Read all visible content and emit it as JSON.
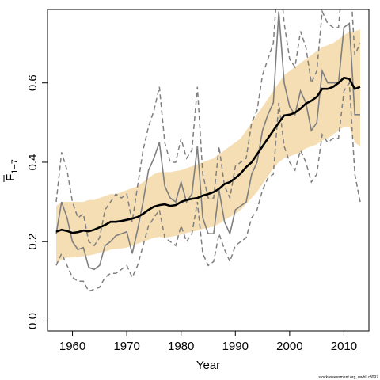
{
  "chart_data": {
    "type": "line",
    "title": "",
    "xlabel": "Year",
    "ylabel_main": "F",
    "ylabel_sub": "1−7",
    "xlim": [
      1955.4,
      2014.6
    ],
    "ylim": [
      -0.025,
      0.785
    ],
    "xticks": [
      1960,
      1970,
      1980,
      1990,
      2000,
      2010
    ],
    "xtick_labels": [
      "1960",
      "1970",
      "1980",
      "1990",
      "2000",
      "2010"
    ],
    "yticks": [
      0.0,
      0.2,
      0.4,
      0.6
    ],
    "ytick_labels": [
      "0.0",
      "0.2",
      "0.4",
      "0.6"
    ],
    "grid": false,
    "legend": "none",
    "colors": {
      "band": "#f5deb3",
      "median": "#000000",
      "estimate": "#7f7f7f",
      "estimate_ci": "#7f7f7f"
    },
    "x": [
      1957,
      1958,
      1959,
      1960,
      1961,
      1962,
      1963,
      1964,
      1965,
      1966,
      1967,
      1968,
      1969,
      1970,
      1971,
      1972,
      1973,
      1974,
      1975,
      1976,
      1977,
      1978,
      1979,
      1980,
      1981,
      1982,
      1983,
      1984,
      1985,
      1986,
      1987,
      1988,
      1989,
      1990,
      1991,
      1992,
      1993,
      1994,
      1995,
      1996,
      1997,
      1998,
      1999,
      2000,
      2001,
      2002,
      2003,
      2004,
      2005,
      2006,
      2007,
      2008,
      2009,
      2010,
      2011,
      2012,
      2013
    ],
    "series": [
      {
        "role": "band_lower",
        "values": [
          0.145,
          0.155,
          0.16,
          0.16,
          0.162,
          0.163,
          0.165,
          0.168,
          0.172,
          0.175,
          0.18,
          0.182,
          0.183,
          0.185,
          0.19,
          0.195,
          0.2,
          0.205,
          0.21,
          0.212,
          0.21,
          0.212,
          0.215,
          0.218,
          0.222,
          0.225,
          0.228,
          0.232,
          0.235,
          0.238,
          0.245,
          0.255,
          0.262,
          0.27,
          0.28,
          0.295,
          0.31,
          0.325,
          0.345,
          0.365,
          0.385,
          0.4,
          0.41,
          0.415,
          0.42,
          0.425,
          0.435,
          0.44,
          0.445,
          0.455,
          0.46,
          0.47,
          0.48,
          0.49,
          0.49,
          0.45,
          0.44
        ]
      },
      {
        "role": "band_upper",
        "values": [
          0.29,
          0.3,
          0.3,
          0.3,
          0.3,
          0.3,
          0.305,
          0.305,
          0.31,
          0.315,
          0.32,
          0.32,
          0.325,
          0.33,
          0.335,
          0.34,
          0.35,
          0.36,
          0.37,
          0.375,
          0.375,
          0.375,
          0.378,
          0.38,
          0.385,
          0.39,
          0.395,
          0.4,
          0.405,
          0.41,
          0.42,
          0.43,
          0.44,
          0.45,
          0.46,
          0.48,
          0.5,
          0.52,
          0.54,
          0.56,
          0.58,
          0.6,
          0.62,
          0.63,
          0.64,
          0.65,
          0.66,
          0.67,
          0.68,
          0.69,
          0.695,
          0.7,
          0.71,
          0.72,
          0.73,
          0.73,
          0.735
        ]
      },
      {
        "role": "median",
        "values": [
          0.225,
          0.23,
          0.227,
          0.222,
          0.224,
          0.228,
          0.226,
          0.23,
          0.236,
          0.242,
          0.25,
          0.25,
          0.252,
          0.255,
          0.258,
          0.262,
          0.27,
          0.28,
          0.288,
          0.292,
          0.294,
          0.29,
          0.292,
          0.3,
          0.305,
          0.308,
          0.31,
          0.316,
          0.32,
          0.325,
          0.333,
          0.345,
          0.35,
          0.36,
          0.372,
          0.388,
          0.4,
          0.42,
          0.44,
          0.46,
          0.48,
          0.5,
          0.518,
          0.52,
          0.525,
          0.535,
          0.548,
          0.555,
          0.565,
          0.585,
          0.585,
          0.59,
          0.6,
          0.613,
          0.61,
          0.585,
          0.59
        ]
      },
      {
        "role": "estimate",
        "values": [
          0.22,
          0.3,
          0.26,
          0.2,
          0.18,
          0.185,
          0.135,
          0.13,
          0.14,
          0.19,
          0.2,
          0.215,
          0.22,
          0.225,
          0.17,
          0.23,
          0.3,
          0.38,
          0.41,
          0.45,
          0.34,
          0.31,
          0.3,
          0.35,
          0.3,
          0.32,
          0.44,
          0.26,
          0.22,
          0.22,
          0.33,
          0.25,
          0.22,
          0.28,
          0.29,
          0.3,
          0.37,
          0.4,
          0.48,
          0.52,
          0.55,
          0.78,
          0.6,
          0.54,
          0.52,
          0.58,
          0.55,
          0.48,
          0.5,
          0.63,
          0.6,
          0.6,
          0.6,
          0.74,
          0.75,
          0.52,
          0.52
        ]
      },
      {
        "role": "estimate_lower",
        "values": [
          0.14,
          0.17,
          0.14,
          0.11,
          0.1,
          0.1,
          0.075,
          0.08,
          0.085,
          0.11,
          0.12,
          0.12,
          0.13,
          0.14,
          0.11,
          0.14,
          0.19,
          0.24,
          0.26,
          0.28,
          0.21,
          0.2,
          0.19,
          0.24,
          0.2,
          0.22,
          0.3,
          0.17,
          0.14,
          0.15,
          0.22,
          0.18,
          0.15,
          0.19,
          0.2,
          0.21,
          0.26,
          0.28,
          0.33,
          0.36,
          0.37,
          0.55,
          0.44,
          0.4,
          0.38,
          0.43,
          0.4,
          0.35,
          0.37,
          0.47,
          0.45,
          0.46,
          0.46,
          0.58,
          0.6,
          0.37,
          0.3
        ]
      },
      {
        "role": "estimate_upper",
        "values": [
          0.3,
          0.425,
          0.38,
          0.3,
          0.26,
          0.27,
          0.2,
          0.19,
          0.21,
          0.28,
          0.3,
          0.32,
          0.31,
          0.32,
          0.25,
          0.34,
          0.43,
          0.49,
          0.53,
          0.59,
          0.45,
          0.4,
          0.4,
          0.46,
          0.41,
          0.43,
          0.59,
          0.37,
          0.31,
          0.31,
          0.44,
          0.34,
          0.31,
          0.39,
          0.4,
          0.41,
          0.5,
          0.53,
          0.62,
          0.66,
          0.7,
          0.9,
          0.75,
          0.66,
          0.64,
          0.73,
          0.69,
          0.6,
          0.63,
          0.78,
          0.75,
          0.74,
          0.74,
          0.9,
          0.9,
          0.67,
          0.7
        ]
      }
    ]
  },
  "footnote": "stockassessment.org, nwhl, r3097"
}
